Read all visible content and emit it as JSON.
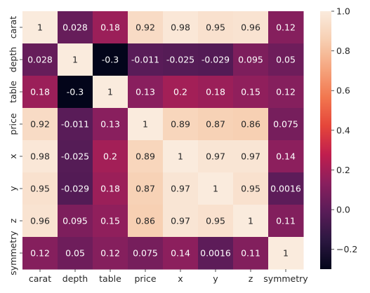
{
  "chart_data": {
    "type": "heatmap",
    "title": "",
    "rows": [
      "carat",
      "depth",
      "table",
      "price",
      "x",
      "y",
      "z",
      "symmetry"
    ],
    "columns": [
      "carat",
      "depth",
      "table",
      "price",
      "x",
      "y",
      "z",
      "symmetry"
    ],
    "values": [
      [
        1,
        0.028,
        0.18,
        0.92,
        0.98,
        0.95,
        0.96,
        0.12
      ],
      [
        0.028,
        1,
        -0.3,
        -0.011,
        -0.025,
        -0.029,
        0.095,
        0.05
      ],
      [
        0.18,
        -0.3,
        1,
        0.13,
        0.2,
        0.18,
        0.15,
        0.12
      ],
      [
        0.92,
        -0.011,
        0.13,
        1,
        0.89,
        0.87,
        0.86,
        0.075
      ],
      [
        0.98,
        -0.025,
        0.2,
        0.89,
        1,
        0.97,
        0.97,
        0.14
      ],
      [
        0.95,
        -0.029,
        0.18,
        0.87,
        0.97,
        1,
        0.95,
        0.0016
      ],
      [
        0.96,
        0.095,
        0.15,
        0.86,
        0.97,
        0.95,
        1,
        0.11
      ],
      [
        0.12,
        0.05,
        0.12,
        0.075,
        0.14,
        0.0016,
        0.11,
        1
      ]
    ],
    "cell_labels": [
      [
        "1",
        "0.028",
        "0.18",
        "0.92",
        "0.98",
        "0.95",
        "0.96",
        "0.12"
      ],
      [
        "0.028",
        "1",
        "-0.3",
        "-0.011",
        "-0.025",
        "-0.029",
        "0.095",
        "0.05"
      ],
      [
        "0.18",
        "-0.3",
        "1",
        "0.13",
        "0.2",
        "0.18",
        "0.15",
        "0.12"
      ],
      [
        "0.92",
        "-0.011",
        "0.13",
        "1",
        "0.89",
        "0.87",
        "0.86",
        "0.075"
      ],
      [
        "0.98",
        "-0.025",
        "0.2",
        "0.89",
        "1",
        "0.97",
        "0.97",
        "0.14"
      ],
      [
        "0.95",
        "-0.029",
        "0.18",
        "0.87",
        "0.97",
        "1",
        "0.95",
        "0.0016"
      ],
      [
        "0.96",
        "0.095",
        "0.15",
        "0.86",
        "0.97",
        "0.95",
        "1",
        "0.11"
      ],
      [
        "0.12",
        "0.05",
        "0.12",
        "0.075",
        "0.14",
        "0.0016",
        "0.11",
        "1"
      ]
    ],
    "colorbar": {
      "min": -0.3,
      "max": 1.0,
      "ticks": [
        -0.2,
        0.0,
        0.2,
        0.4,
        0.6,
        0.8,
        1.0
      ],
      "tick_labels": [
        "−0.2",
        "0.0",
        "0.2",
        "0.4",
        "0.6",
        "0.8",
        "1.0"
      ]
    },
    "colormap": "rocket",
    "colormap_stops": [
      "#03051a",
      "#2b1740",
      "#591c58",
      "#8a1f5e",
      "#c01e4e",
      "#e5463a",
      "#f2774f",
      "#f5a57e",
      "#f7cfb2",
      "#faebdd"
    ],
    "grid": false
  }
}
